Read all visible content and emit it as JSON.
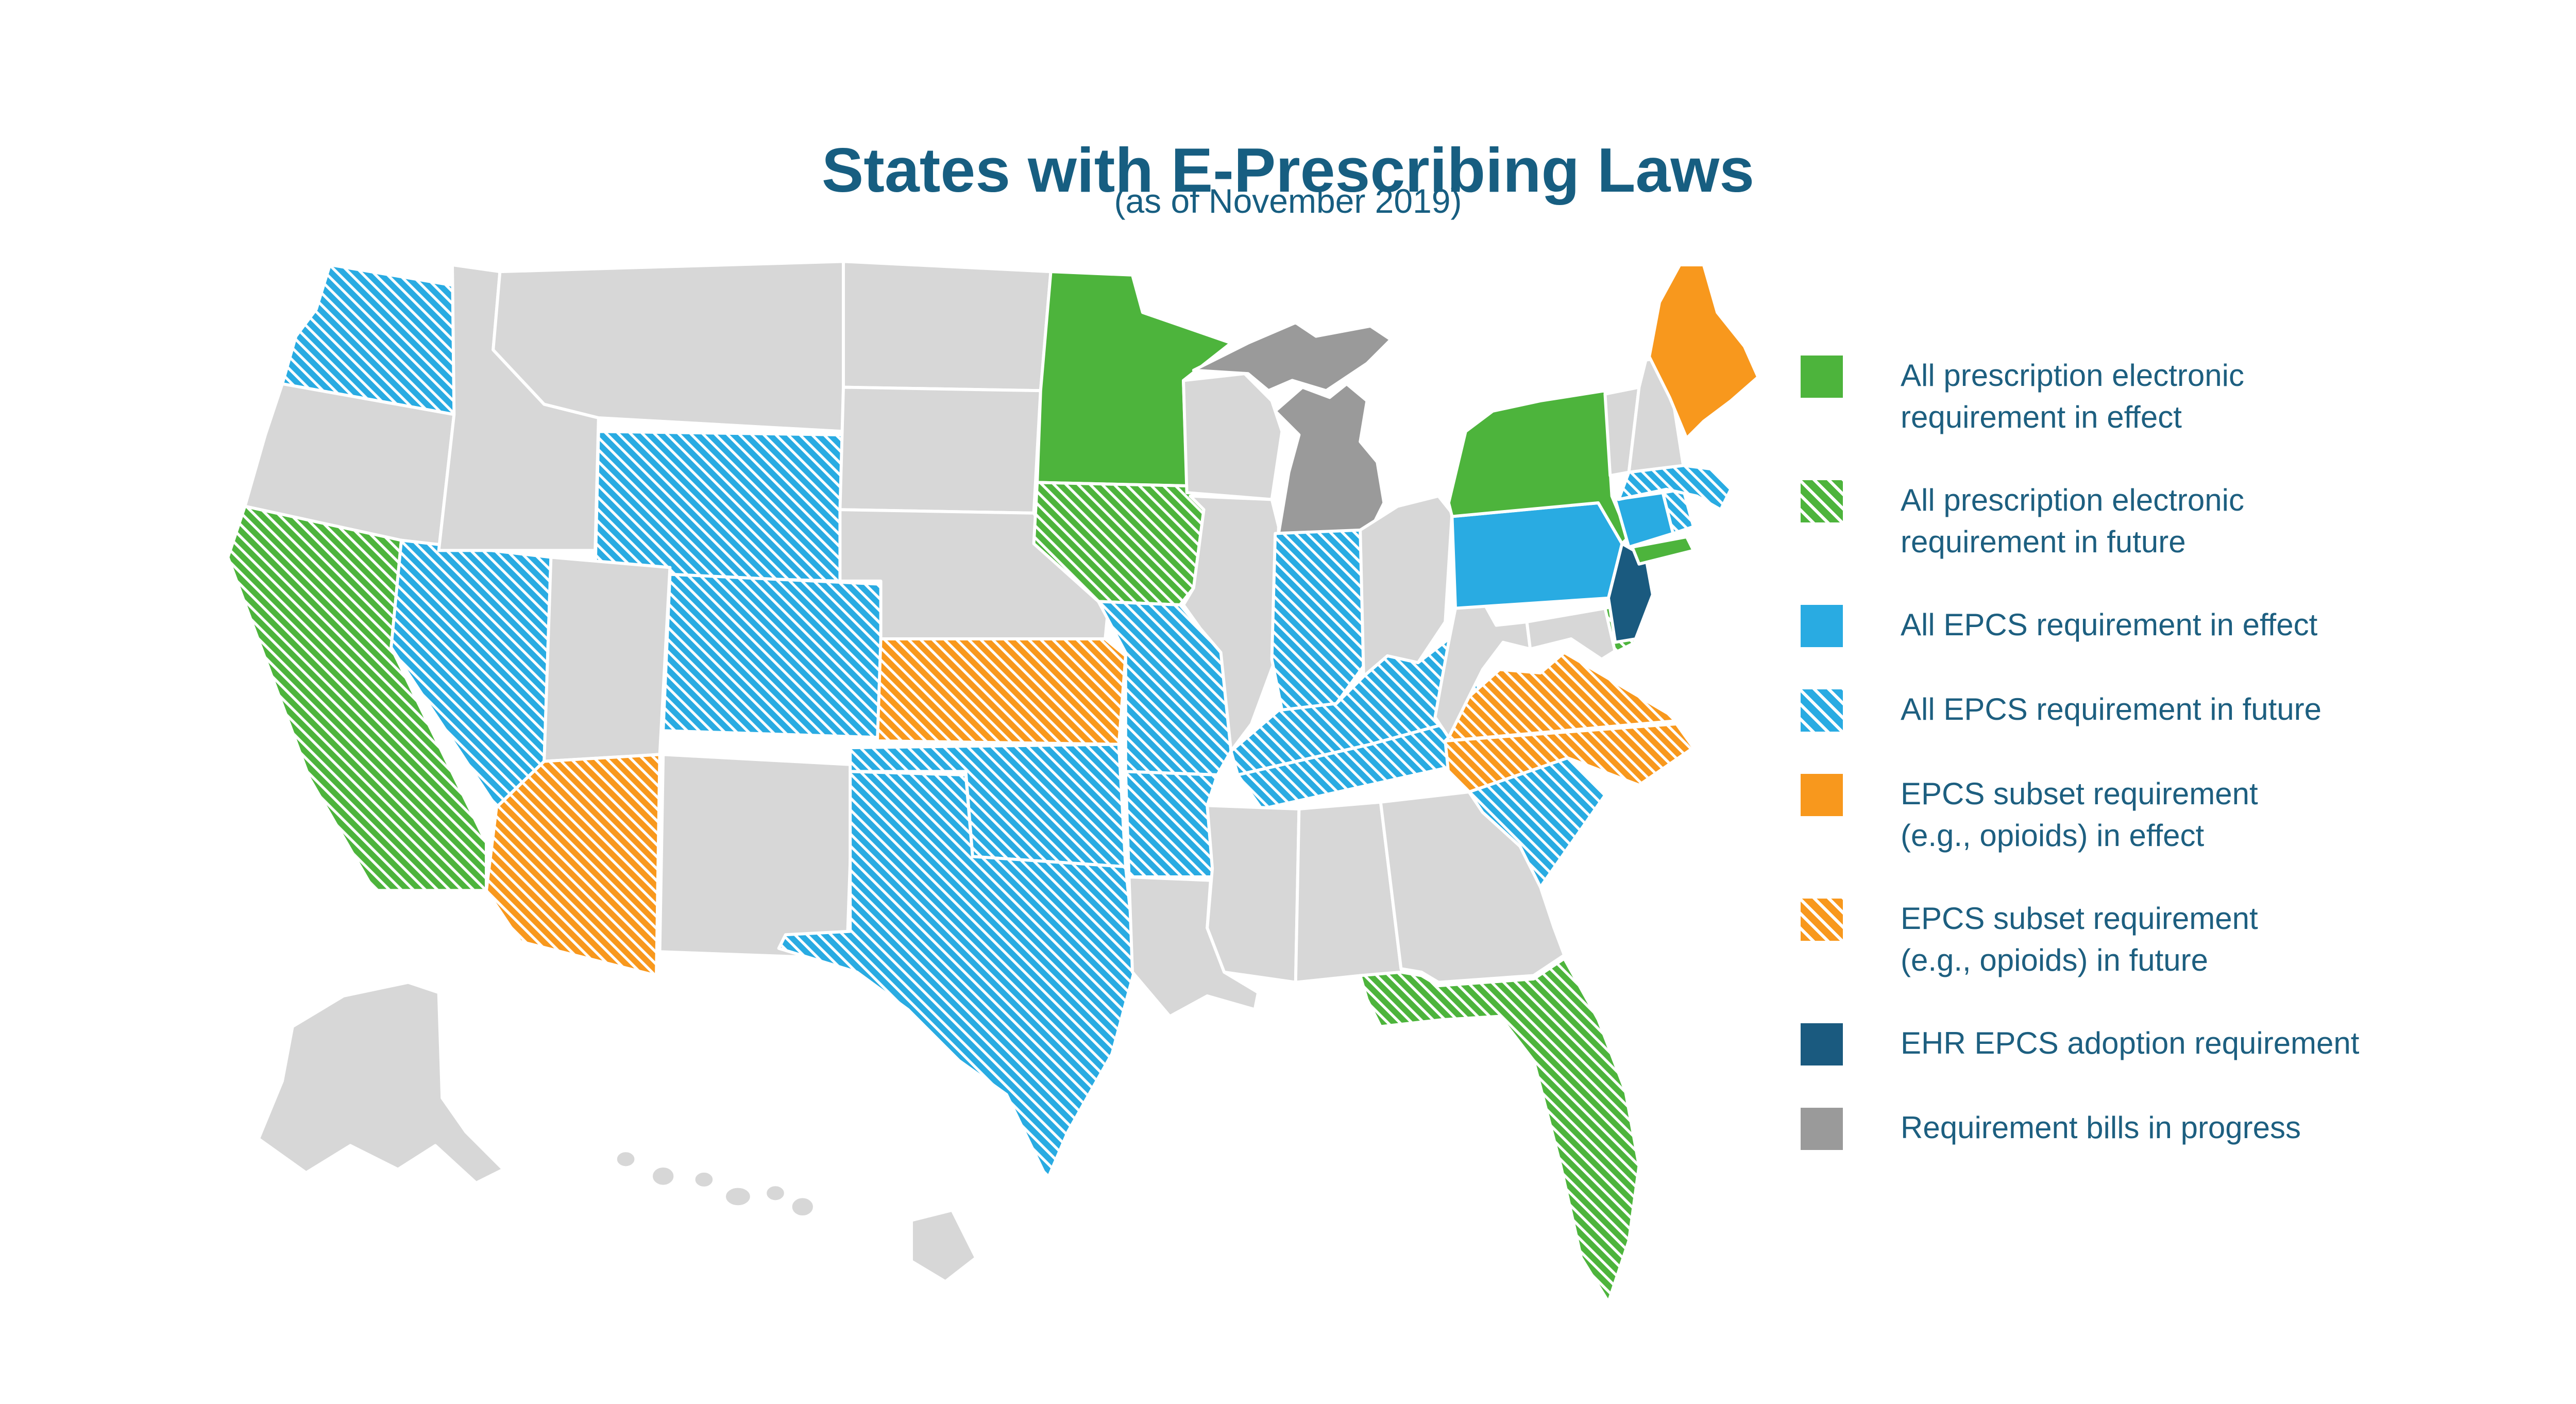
{
  "title": "States with E-Prescribing Laws",
  "subtitle": "(as of November 2019)",
  "colors": {
    "title_text": "#175e81",
    "legend_text": "#1d5f80",
    "green": "#4db43c",
    "blue": "#29abe2",
    "orange": "#f8981d",
    "navy": "#1a5a7f",
    "progress_gray": "#9a9a9a",
    "no_law_gray": "#d7d7d7",
    "stripe_white": "#ffffff"
  },
  "legend": {
    "items": [
      {
        "id": "all_rx_effect",
        "swatch": "green-solid",
        "lines": [
          "All prescription electronic",
          "requirement in effect"
        ]
      },
      {
        "id": "all_rx_future",
        "swatch": "green-hatch",
        "lines": [
          "All prescription electronic",
          "requirement in future"
        ]
      },
      {
        "id": "epcs_effect",
        "swatch": "blue-solid",
        "lines": [
          "All EPCS requirement in effect"
        ]
      },
      {
        "id": "epcs_future",
        "swatch": "blue-hatch",
        "lines": [
          "All EPCS requirement in future"
        ]
      },
      {
        "id": "subset_effect",
        "swatch": "orange-solid",
        "lines": [
          "EPCS subset requirement",
          "(e.g., opioids) in effect"
        ]
      },
      {
        "id": "subset_future",
        "swatch": "orange-hatch",
        "lines": [
          "EPCS subset requirement",
          "(e.g., opioids) in future"
        ]
      },
      {
        "id": "ehr",
        "swatch": "navy-solid",
        "lines": [
          "EHR EPCS adoption requirement"
        ]
      },
      {
        "id": "bills",
        "swatch": "gray-solid",
        "lines": [
          "Requirement bills in progress"
        ]
      }
    ]
  },
  "map": {
    "states": {
      "WA": "epcs_future",
      "OR": "none",
      "CA": "all_rx_future",
      "NV": "epcs_future",
      "ID": "none",
      "MT": "none",
      "WY": "epcs_future",
      "UT": "none",
      "CO": "epcs_future",
      "AZ": "subset_future",
      "NM": "none",
      "ND": "none",
      "SD": "none",
      "NE": "none",
      "KS": "subset_future",
      "OK": "epcs_future",
      "TX": "epcs_future",
      "MN": "all_rx_effect",
      "IA": "all_rx_future",
      "MO": "epcs_future",
      "AR": "epcs_future",
      "LA": "none",
      "WI": "none",
      "IL": "none",
      "MI": "bills",
      "IN": "epcs_future",
      "OH": "none",
      "KY": "epcs_future",
      "TN": "epcs_future",
      "MS": "none",
      "AL": "none",
      "GA": "none",
      "FL": "all_rx_future",
      "SC": "epcs_future",
      "NC": "subset_future",
      "VA": "subset_future",
      "WV": "none",
      "MD": "none",
      "DE": "all_rx_future",
      "PA": "epcs_effect",
      "NJ": "ehr",
      "NY": "all_rx_effect",
      "CT": "epcs_effect",
      "RI": "epcs_future",
      "MA": "epcs_future",
      "VT": "none",
      "NH": "none",
      "ME": "subset_effect",
      "AK": "none",
      "HI": "none"
    }
  }
}
